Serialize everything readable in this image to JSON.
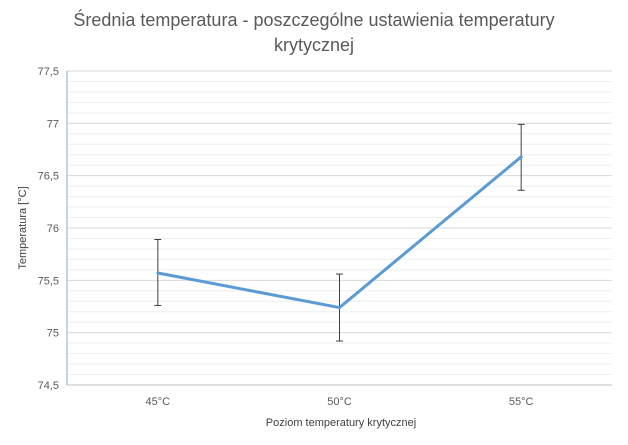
{
  "chart_data": {
    "type": "line",
    "title_lines": [
      "Średnia temperatura - poszczególne ustawienia temperatury",
      "krytycznej"
    ],
    "xlabel": "Poziom temperatury krytycznej",
    "ylabel": "Temperatura [°C]",
    "categories": [
      "45°C",
      "50°C",
      "55°C"
    ],
    "series": [
      {
        "values": [
          75.57,
          75.24,
          76.68
        ],
        "error_low": [
          75.26,
          74.92,
          76.36
        ],
        "error_high": [
          75.89,
          75.56,
          76.99
        ],
        "color": "#5b9bd5"
      }
    ],
    "ylim": [
      74.5,
      77.5
    ],
    "yticks": [
      74.5,
      75,
      75.5,
      76,
      76.5,
      77,
      77.5
    ],
    "ytick_labels": [
      "74,5",
      "75",
      "75,5",
      "76",
      "76,5",
      "77",
      "77,5"
    ],
    "minor_grid_step": 0.1,
    "grid": true,
    "legend": "none"
  },
  "colors": {
    "major_grid": "#d9d9d9",
    "minor_grid": "#eeeeee",
    "y_axis_line": "#7fb3c9",
    "x_axis_line": "#bfbfbf",
    "error_bar": "#404040"
  }
}
